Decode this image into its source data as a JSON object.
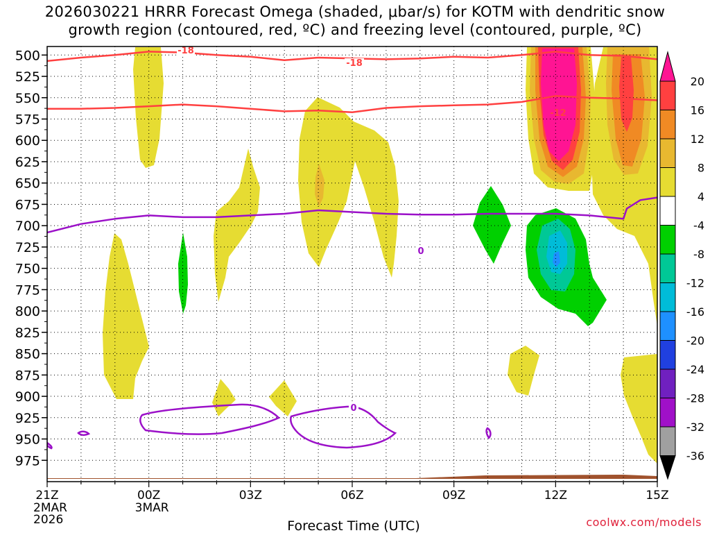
{
  "title": {
    "line1": "2026030221 HRRR Forecast Omega (shaded, μbar/s) for KOTM with dendritic snow",
    "line2": "growth region (contoured, red, ºC) and freezing level (contoured, purple, ºC)"
  },
  "credit": "coolwx.com/models",
  "chart_data": {
    "type": "time-height cross section",
    "xlabel": "Forecast Time (UTC)",
    "x_ticks": [
      {
        "hour": 0,
        "label": "21Z",
        "sub": [
          "2MAR",
          "2026"
        ]
      },
      {
        "hour": 3,
        "label": "00Z",
        "sub": [
          "3MAR"
        ]
      },
      {
        "hour": 6,
        "label": "03Z",
        "sub": []
      },
      {
        "hour": 9,
        "label": "06Z",
        "sub": []
      },
      {
        "hour": 12,
        "label": "09Z",
        "sub": []
      },
      {
        "hour": 15,
        "label": "12Z",
        "sub": []
      },
      {
        "hour": 18,
        "label": "15Z",
        "sub": []
      }
    ],
    "xlim": [
      0,
      18
    ],
    "y_ticks": [
      500,
      525,
      550,
      575,
      600,
      625,
      650,
      675,
      700,
      725,
      750,
      775,
      800,
      825,
      850,
      875,
      900,
      925,
      950,
      975
    ],
    "ylim_hpa": [
      490,
      1000
    ],
    "colorbar": {
      "labels": [
        "20",
        "16",
        "12",
        "8",
        "4",
        "-4",
        "-8",
        "-12",
        "-16",
        "-20",
        "-24",
        "-28",
        "-32",
        "-36"
      ],
      "colors": [
        "#ff1493",
        "#ff4040",
        "#f08a24",
        "#e8b830",
        "#e6dc32",
        "#ffffff",
        "#00d000",
        "#00c896",
        "#00bcd8",
        "#1e90ff",
        "#2040e0",
        "#7020c0",
        "#a010c8",
        "#a0a0a0",
        "#000000"
      ]
    },
    "contour_labels": {
      "dgz_upper": "-18",
      "dgz_lower": "-12",
      "freezing": "0"
    },
    "series": [
      {
        "name": "dgz_upper_-18C",
        "color": "#ff4040",
        "points": [
          [
            0,
            507
          ],
          [
            1,
            503
          ],
          [
            2,
            500
          ],
          [
            3,
            496
          ],
          [
            4,
            497
          ],
          [
            5,
            500
          ],
          [
            6,
            502
          ],
          [
            7,
            506
          ],
          [
            8,
            503
          ],
          [
            9,
            504
          ],
          [
            10,
            505
          ],
          [
            11,
            504
          ],
          [
            12,
            502
          ],
          [
            13,
            503
          ],
          [
            14,
            500
          ],
          [
            15,
            496
          ],
          [
            16,
            500
          ],
          [
            17,
            501
          ],
          [
            18,
            505
          ]
        ]
      },
      {
        "name": "dgz_lower_-12C",
        "color": "#ff4040",
        "points": [
          [
            0,
            563
          ],
          [
            1,
            563
          ],
          [
            2,
            562
          ],
          [
            3,
            560
          ],
          [
            4,
            558
          ],
          [
            5,
            560
          ],
          [
            6,
            563
          ],
          [
            7,
            566
          ],
          [
            8,
            565
          ],
          [
            9,
            567
          ],
          [
            10,
            562
          ],
          [
            11,
            560
          ],
          [
            12,
            559
          ],
          [
            13,
            558
          ],
          [
            14,
            555
          ],
          [
            15,
            548
          ],
          [
            16,
            550
          ],
          [
            17,
            551
          ],
          [
            18,
            553
          ]
        ]
      },
      {
        "name": "freezing_level_0C",
        "color": "#9b10c8",
        "points": [
          [
            0,
            708
          ],
          [
            1,
            698
          ],
          [
            2,
            692
          ],
          [
            3,
            688
          ],
          [
            4,
            690
          ],
          [
            5,
            690
          ],
          [
            6,
            688
          ],
          [
            7,
            686
          ],
          [
            8,
            682
          ],
          [
            9,
            684
          ],
          [
            10,
            686
          ],
          [
            11,
            687
          ],
          [
            12,
            687
          ],
          [
            13,
            686
          ],
          [
            14,
            686
          ],
          [
            15,
            686
          ],
          [
            16,
            688
          ],
          [
            17,
            692
          ],
          [
            17.1,
            680
          ],
          [
            17.5,
            670
          ],
          [
            18,
            667
          ]
        ]
      }
    ]
  }
}
